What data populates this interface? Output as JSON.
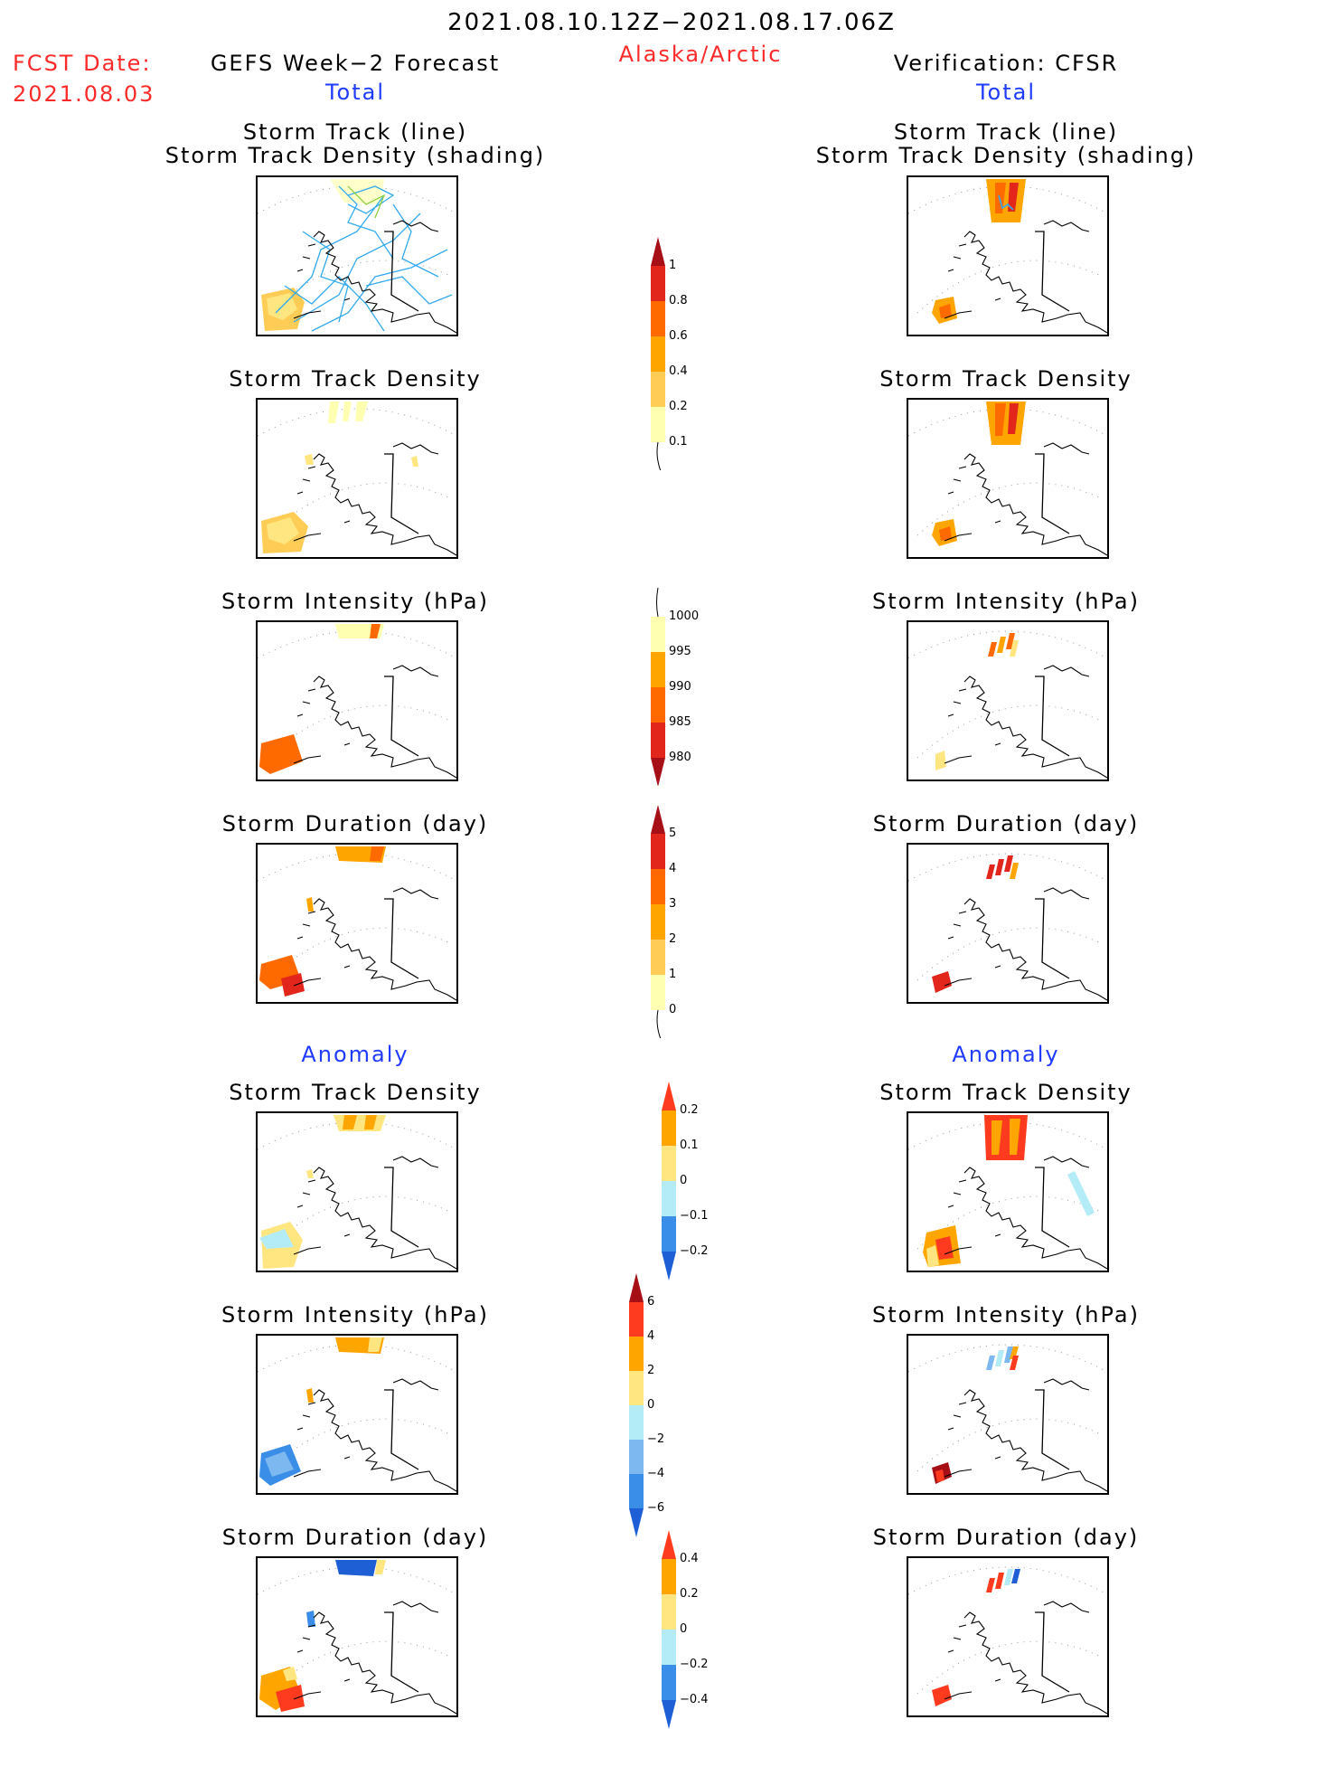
{
  "header": {
    "date_range": "2021.08.10.12Z−2021.08.17.06Z",
    "region": "Alaska/Arctic",
    "fcst_date_label": "FCST Date:",
    "fcst_date_value": "2021.08.03",
    "left_title": "GEFS Week−2 Forecast",
    "right_title": "Verification: CFSR",
    "total_label": "Total",
    "anomaly_label": "Anomaly"
  },
  "panel_titles": {
    "track_line": "Storm Track (line)",
    "track_shading": "Storm Track Density (shading)",
    "density": "Storm Track Density",
    "intensity": "Storm Intensity (hPa)",
    "duration": "Storm Duration (day)"
  },
  "colorbars": {
    "total_density": {
      "labels": [
        "1",
        "0.8",
        "0.6",
        "0.4",
        "0.2",
        "0.1"
      ],
      "colors": [
        "#a50f15",
        "#e3261c",
        "#ff6a00",
        "#ffa500",
        "#ffcc55",
        "#ffffb2"
      ]
    },
    "total_intensity": {
      "labels": [
        "1000",
        "995",
        "990",
        "985",
        "980"
      ],
      "colors": [
        "#ffffb2",
        "#ffa500",
        "#ff6a00",
        "#e3261c",
        "#a50f15"
      ]
    },
    "total_duration": {
      "labels": [
        "5",
        "4",
        "3",
        "2",
        "1",
        "0"
      ],
      "colors": [
        "#a50f15",
        "#e3261c",
        "#ff6a00",
        "#ffa500",
        "#ffcc55",
        "#ffffb2"
      ]
    },
    "anom_density": {
      "labels": [
        "0.2",
        "0.1",
        "0",
        "−0.1",
        "−0.2"
      ],
      "colors": [
        "#ff3b1f",
        "#ffa500",
        "#ffe680",
        "#b3ecf7",
        "#3a8ee8",
        "#1f5fd6"
      ]
    },
    "anom_intensity": {
      "labels": [
        "6",
        "4",
        "2",
        "0",
        "−2",
        "−4",
        "−6"
      ],
      "colors": [
        "#a50f15",
        "#ff3b1f",
        "#ffa500",
        "#ffe680",
        "#b3ecf7",
        "#7db8f0",
        "#3a8ee8",
        "#1f5fd6"
      ]
    },
    "anom_duration": {
      "labels": [
        "0.4",
        "0.2",
        "0",
        "−0.2",
        "−0.4"
      ],
      "colors": [
        "#ff3b1f",
        "#ffa500",
        "#ffe680",
        "#b3ecf7",
        "#3a8ee8",
        "#1f5fd6"
      ]
    }
  }
}
